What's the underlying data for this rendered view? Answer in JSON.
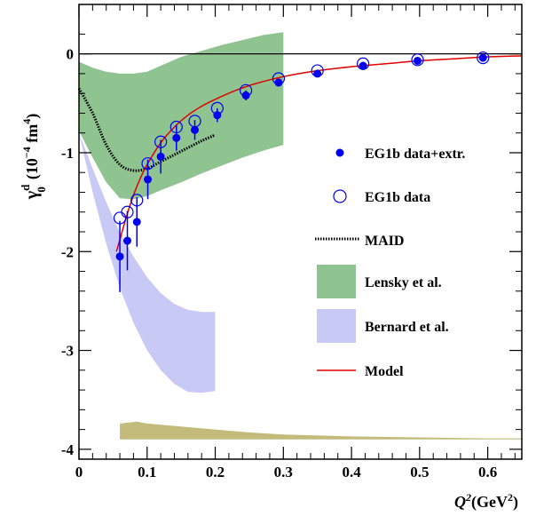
{
  "chart_data": {
    "type": "scatter",
    "xlabel": "Q",
    "xlabel_sup": "2",
    "xlabel_unit": "(GeV",
    "xlabel_unit_sup": "2",
    "xlabel_close": ")",
    "ylabel_main": "γ",
    "ylabel_sup": "d",
    "ylabel_sub": "0",
    "ylabel_unit_pre": "(10",
    "ylabel_unit_exp": "−4",
    "ylabel_unit_mid": " fm",
    "ylabel_unit_exp2": "4",
    "ylabel_unit_post": ")",
    "xlim": [
      0,
      0.65
    ],
    "ylim": [
      -4.1,
      0.5
    ],
    "x_ticks": [
      0,
      0.1,
      0.2,
      0.3,
      0.4,
      0.5,
      0.6
    ],
    "x_tick_labels": [
      "0",
      "0.1",
      "0.2",
      "0.3",
      "0.4",
      "0.5",
      "0.6"
    ],
    "y_ticks": [
      0,
      -1,
      -2,
      -3,
      -4
    ],
    "y_tick_labels": [
      "0",
      "-1",
      "-2",
      "-3",
      "-4"
    ],
    "legend_placement": "right",
    "legend": [
      {
        "key": "full",
        "label": "EG1b data+extr."
      },
      {
        "key": "open",
        "label": "EG1b data"
      },
      {
        "key": "maid",
        "label": "MAID"
      },
      {
        "key": "lensky",
        "label": "Lensky et al."
      },
      {
        "key": "bernard",
        "label": "Bernard et al."
      },
      {
        "key": "model",
        "label": "Model"
      }
    ],
    "colors": {
      "data": "#0000ee",
      "model": "#e00000",
      "lensky": "#8fc490",
      "bernard": "#c9c9f5",
      "maid": "#000000",
      "systematic": "#c2bb7c"
    },
    "series": {
      "eg1b_full": {
        "x": [
          0.06,
          0.071,
          0.085,
          0.101,
          0.12,
          0.143,
          0.17,
          0.203,
          0.245,
          0.293,
          0.35,
          0.417,
          0.497,
          0.593
        ],
        "y": [
          -2.05,
          -1.89,
          -1.7,
          -1.27,
          -1.04,
          -0.85,
          -0.77,
          -0.62,
          -0.42,
          -0.29,
          -0.2,
          -0.12,
          -0.07,
          -0.04
        ],
        "err": [
          0.36,
          0.3,
          0.25,
          0.2,
          0.17,
          0.13,
          0.1,
          0.07,
          0.05,
          0.04,
          0.03,
          0.02,
          0.02,
          0.02
        ]
      },
      "eg1b_data": {
        "x": [
          0.06,
          0.071,
          0.085,
          0.101,
          0.12,
          0.143,
          0.17,
          0.203,
          0.245,
          0.293,
          0.35,
          0.417,
          0.497,
          0.593
        ],
        "y": [
          -1.66,
          -1.6,
          -1.48,
          -1.11,
          -0.89,
          -0.74,
          -0.68,
          -0.55,
          -0.37,
          -0.25,
          -0.17,
          -0.1,
          -0.06,
          -0.04
        ]
      },
      "model": {
        "x": [
          0.055,
          0.06,
          0.07,
          0.08,
          0.09,
          0.1,
          0.12,
          0.14,
          0.16,
          0.18,
          0.2,
          0.23,
          0.26,
          0.3,
          0.35,
          0.4,
          0.45,
          0.5,
          0.55,
          0.6,
          0.65
        ],
        "y": [
          -2.0,
          -1.88,
          -1.64,
          -1.43,
          -1.26,
          -1.12,
          -0.9,
          -0.74,
          -0.62,
          -0.53,
          -0.46,
          -0.37,
          -0.3,
          -0.23,
          -0.17,
          -0.13,
          -0.1,
          -0.07,
          -0.05,
          -0.03,
          -0.02
        ]
      },
      "maid": {
        "x": [
          0.0,
          0.02,
          0.04,
          0.06,
          0.08,
          0.1,
          0.12,
          0.14,
          0.16,
          0.18,
          0.2
        ],
        "y": [
          -0.35,
          -0.6,
          -0.92,
          -1.12,
          -1.18,
          -1.16,
          -1.09,
          -1.02,
          -0.95,
          -0.88,
          -0.82
        ]
      },
      "lensky_band": {
        "x": [
          0.0,
          0.02,
          0.04,
          0.06,
          0.08,
          0.1,
          0.12,
          0.15,
          0.18,
          0.21,
          0.24,
          0.27,
          0.3
        ],
        "upper": [
          -0.08,
          -0.14,
          -0.18,
          -0.2,
          -0.2,
          -0.18,
          -0.12,
          -0.03,
          0.03,
          0.09,
          0.14,
          0.19,
          0.22
        ],
        "lower": [
          -0.78,
          -1.05,
          -1.3,
          -1.46,
          -1.47,
          -1.44,
          -1.38,
          -1.3,
          -1.21,
          -1.13,
          -1.05,
          -0.98,
          -0.92
        ]
      },
      "bernard_band": {
        "x": [
          0.0,
          0.02,
          0.04,
          0.06,
          0.08,
          0.1,
          0.12,
          0.14,
          0.16,
          0.18,
          0.2
        ],
        "upper": [
          -0.8,
          -1.16,
          -1.5,
          -1.81,
          -2.05,
          -2.26,
          -2.42,
          -2.53,
          -2.59,
          -2.61,
          -2.61
        ],
        "lower": [
          -0.8,
          -1.4,
          -1.92,
          -2.37,
          -2.72,
          -3.0,
          -3.2,
          -3.34,
          -3.42,
          -3.43,
          -3.41
        ]
      },
      "systematic_band": {
        "x": [
          0.06,
          0.085,
          0.1,
          0.15,
          0.2,
          0.25,
          0.3,
          0.4,
          0.5,
          0.6,
          0.65
        ],
        "upper": [
          -3.74,
          -3.72,
          -3.74,
          -3.77,
          -3.8,
          -3.83,
          -3.85,
          -3.87,
          -3.88,
          -3.89,
          -3.89
        ],
        "lower": [
          -3.9,
          -3.9,
          -3.9,
          -3.9,
          -3.9,
          -3.9,
          -3.9,
          -3.9,
          -3.9,
          -3.9,
          -3.9
        ]
      }
    }
  }
}
